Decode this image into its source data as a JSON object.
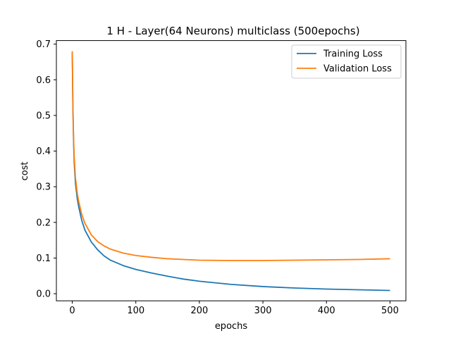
{
  "chart_data": {
    "type": "line",
    "title": "1 H - Layer(64 Neurons) multiclass (500epochs)",
    "xlabel": "epochs",
    "ylabel": "cost",
    "xlim": [
      -25,
      525
    ],
    "ylim": [
      -0.02,
      0.71
    ],
    "xticks": [
      0,
      100,
      200,
      300,
      400,
      500
    ],
    "xtick_labels": [
      "0",
      "100",
      "200",
      "300",
      "400",
      "500"
    ],
    "yticks": [
      0.0,
      0.1,
      0.2,
      0.3,
      0.4,
      0.5,
      0.6,
      0.7
    ],
    "ytick_labels": [
      "0.0",
      "0.1",
      "0.2",
      "0.3",
      "0.4",
      "0.5",
      "0.6",
      "0.7"
    ],
    "grid": false,
    "legend_position": "top-right",
    "series": [
      {
        "name": "Training Loss",
        "color": "#1f77b4",
        "x": [
          0,
          1,
          2,
          3,
          5,
          8,
          10,
          15,
          20,
          30,
          40,
          50,
          60,
          80,
          100,
          125,
          150,
          175,
          200,
          250,
          300,
          350,
          400,
          450,
          500
        ],
        "y": [
          0.675,
          0.52,
          0.43,
          0.37,
          0.31,
          0.265,
          0.245,
          0.205,
          0.178,
          0.145,
          0.123,
          0.106,
          0.094,
          0.079,
          0.068,
          0.058,
          0.049,
          0.041,
          0.035,
          0.026,
          0.02,
          0.016,
          0.013,
          0.011,
          0.009
        ]
      },
      {
        "name": "Validation Loss",
        "color": "#ff7f0e",
        "x": [
          0,
          1,
          2,
          3,
          5,
          8,
          10,
          15,
          20,
          30,
          40,
          50,
          60,
          80,
          100,
          125,
          150,
          175,
          200,
          250,
          300,
          350,
          400,
          450,
          500
        ],
        "y": [
          0.68,
          0.53,
          0.44,
          0.385,
          0.325,
          0.28,
          0.26,
          0.222,
          0.197,
          0.165,
          0.146,
          0.134,
          0.125,
          0.114,
          0.107,
          0.102,
          0.098,
          0.096,
          0.094,
          0.093,
          0.093,
          0.094,
          0.095,
          0.096,
          0.098
        ]
      }
    ]
  }
}
